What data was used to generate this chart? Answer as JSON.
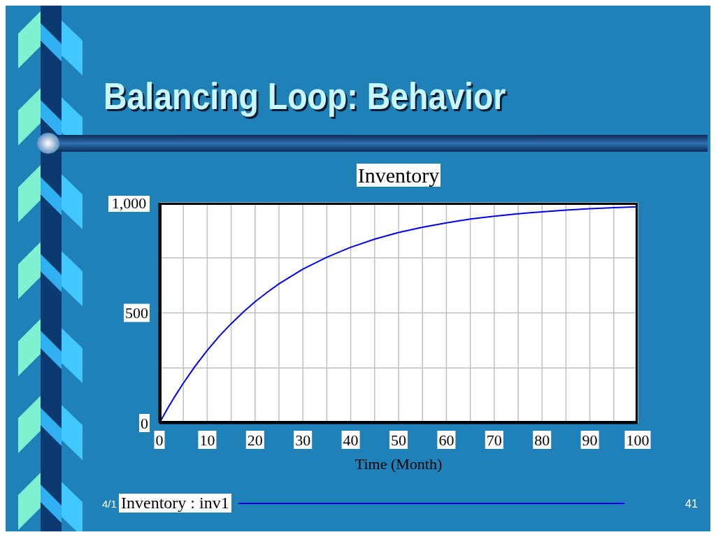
{
  "chart_data": {
    "type": "line",
    "title": "Balancing Loop: Behavior",
    "subtitle": "Inventory",
    "xlabel": "Time (Month)",
    "x": [
      0,
      1,
      2,
      3,
      5,
      7.5,
      10,
      12.5,
      15,
      17.5,
      20,
      22.5,
      25,
      30,
      35,
      40,
      45,
      50,
      55,
      60,
      65,
      70,
      75,
      80,
      85,
      90,
      95,
      100
    ],
    "series": [
      {
        "name": "Inventory : inv1",
        "color": "#0000e0",
        "values": [
          0,
          39,
          77,
          113,
          181,
          259,
          330,
          394,
          451,
          503,
          551,
          593,
          632,
          699,
          753,
          798,
          835,
          865,
          889,
          909,
          926,
          939,
          950,
          959,
          967,
          973,
          978,
          982
        ]
      }
    ],
    "xlim": [
      0,
      100
    ],
    "xticks": [
      0,
      {
        "value": 5,
        "label": null
      },
      10,
      {
        "value": 15,
        "label": null
      },
      20,
      {
        "value": 25,
        "label": null
      },
      30,
      {
        "value": 35,
        "label": null
      },
      40,
      {
        "value": 45,
        "label": null
      },
      50,
      {
        "value": 55,
        "label": null
      },
      60,
      {
        "value": 65,
        "label": null
      },
      70,
      {
        "value": 75,
        "label": null
      },
      80,
      {
        "value": 85,
        "label": null
      },
      90,
      {
        "value": 95,
        "label": null
      },
      100
    ],
    "ylim": [
      0,
      1000
    ],
    "yticks": [
      0,
      {
        "value": 250,
        "label": null
      },
      500,
      {
        "value": 750,
        "label": null
      },
      {
        "value": 1000,
        "label": "1,000"
      }
    ],
    "grid": true,
    "legend": "bottom",
    "marker": "none",
    "line_style": "solid",
    "annotations": [
      "4/1",
      "41"
    ]
  }
}
